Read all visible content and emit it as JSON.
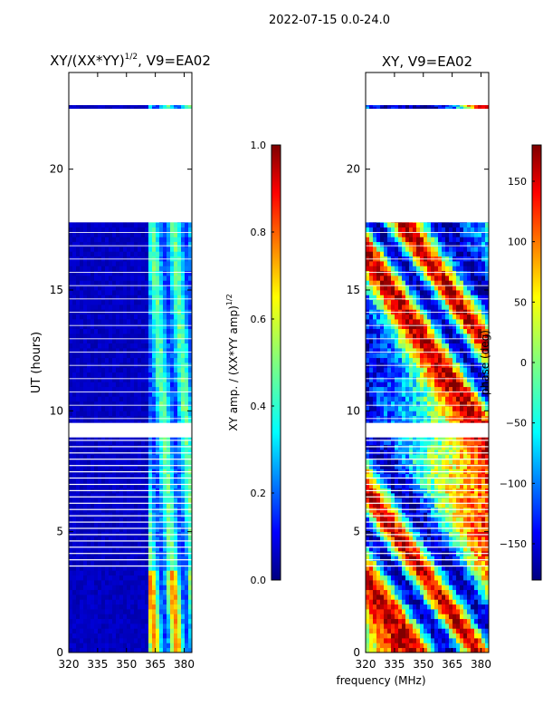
{
  "figure": {
    "suptitle": "2022-07-15 0.0-24.0",
    "xlabel": "frequency (MHz)"
  },
  "chart_data": [
    {
      "type": "heatmap",
      "title_base": "XY/(XX*YY)",
      "title_sup": "1/2",
      "title_tail": ", V9=EA02",
      "ylabel": "UT (hours)",
      "xlim": [
        320,
        384
      ],
      "ylim": [
        0,
        24
      ],
      "xticks": [
        "320",
        "335",
        "350",
        "365",
        "380"
      ],
      "yticks": [
        "0",
        "5",
        "10",
        "15",
        "20"
      ],
      "colorbar": {
        "range": [
          0.0,
          1.0
        ],
        "ticks": [
          "0.0",
          "0.2",
          "0.4",
          "0.6",
          "0.8",
          "1.0"
        ],
        "label_base": "XY amp. / (XX*YY amp)",
        "label_sup": "1/2"
      },
      "colormap": "jet",
      "description_bands": [
        {
          "freq": [
            320,
            362
          ],
          "value": 0.05
        },
        {
          "freq": [
            362,
            384
          ],
          "value": 0.35
        }
      ],
      "gaps_hours": [
        [
          17.8,
          22.5
        ],
        [
          22.65,
          24.0
        ],
        [
          8.9,
          9.5
        ]
      ]
    },
    {
      "type": "heatmap",
      "title": "XY, V9=EA02",
      "xlim": [
        320,
        384
      ],
      "ylim": [
        0,
        24
      ],
      "xticks": [
        "320",
        "335",
        "350",
        "365",
        "380"
      ],
      "yticks": [
        "0",
        "5",
        "10",
        "15",
        "20"
      ],
      "colorbar": {
        "range": [
          -180,
          180
        ],
        "ticks": [
          "−150",
          "−100",
          "−50",
          "0",
          "50",
          "100",
          "150"
        ],
        "label": "phase (deg)"
      },
      "colormap": "jet",
      "gaps_hours": [
        [
          17.8,
          22.5
        ],
        [
          22.65,
          24.0
        ],
        [
          8.9,
          9.5
        ]
      ]
    }
  ]
}
